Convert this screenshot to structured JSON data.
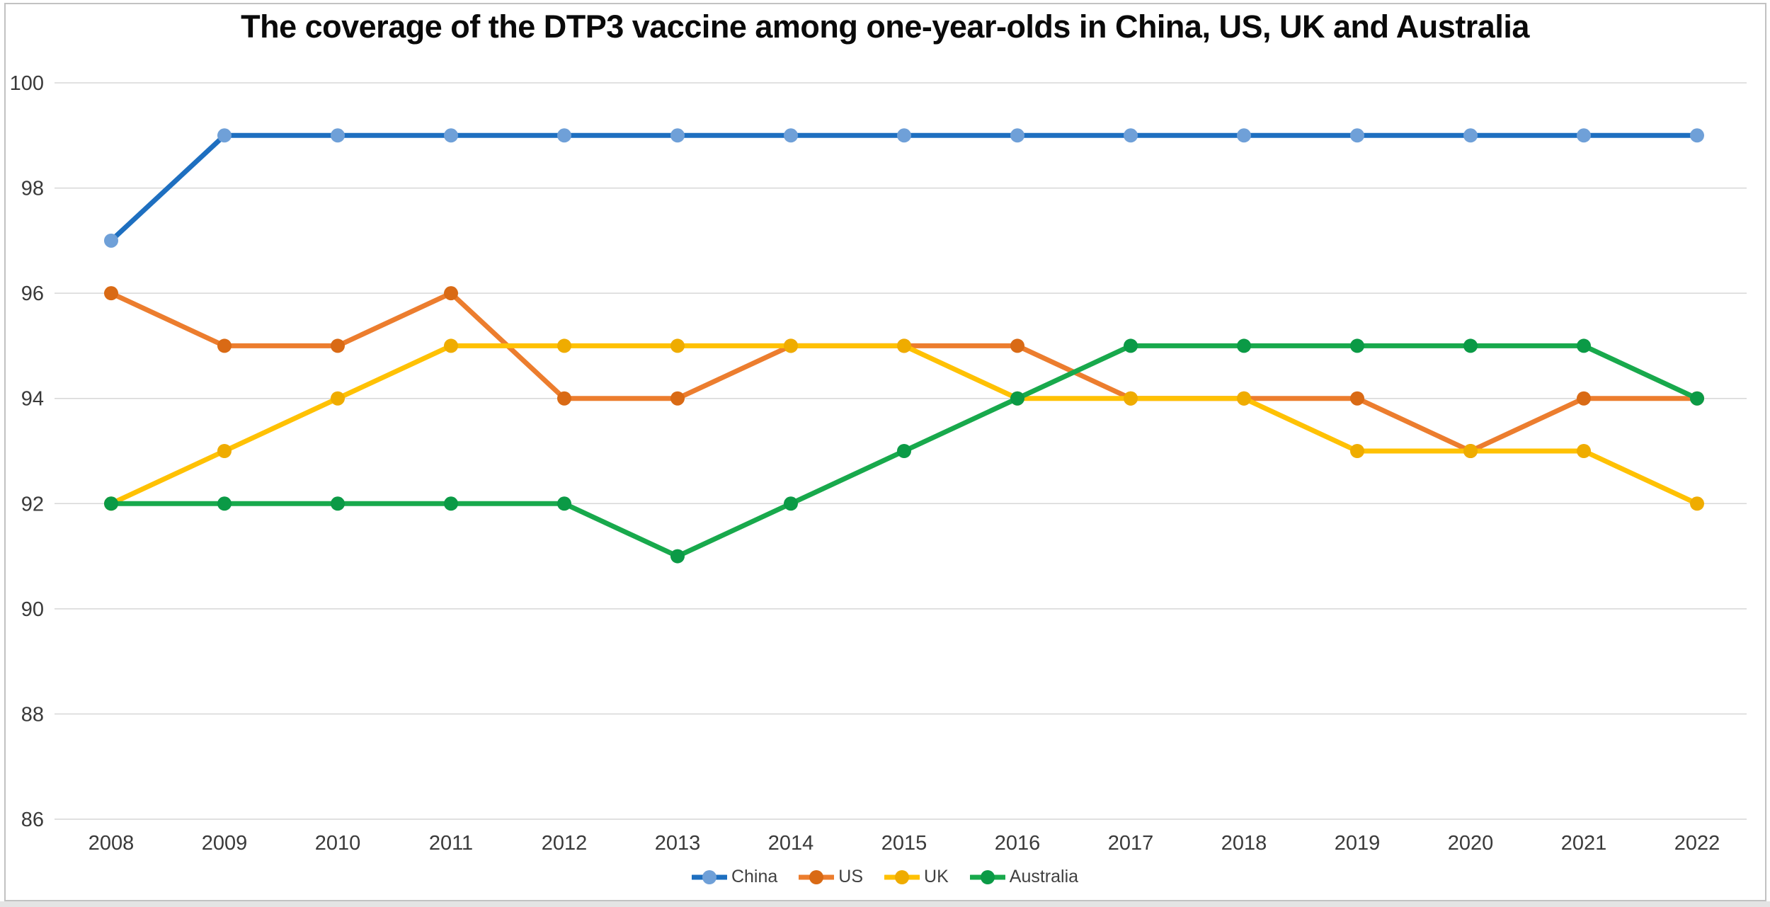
{
  "page": {
    "background": "#FFFFFF",
    "frame_border_color": "#C2C2C2",
    "bottom_strip_color": "#E4E4E4"
  },
  "chart_data": {
    "type": "line",
    "title": "The coverage of the DTP3 vaccine among one-year-olds in China, US, UK and Australia",
    "xlabel": "",
    "ylabel": "",
    "x": [
      2008,
      2009,
      2010,
      2011,
      2012,
      2013,
      2014,
      2015,
      2016,
      2017,
      2018,
      2019,
      2020,
      2021,
      2022
    ],
    "ylim": [
      86,
      100
    ],
    "ytick_step": 2,
    "yticks": [
      86,
      88,
      90,
      92,
      94,
      96,
      98,
      100
    ],
    "grid": true,
    "gridline_color": "#D7D7D7",
    "tick_label_color": "#3A3A3A",
    "legend_position": "bottom",
    "series": [
      {
        "name": "China",
        "color": "#1E6FC0",
        "marker_color": "#6FA0D8",
        "values": [
          97,
          99,
          99,
          99,
          99,
          99,
          99,
          99,
          99,
          99,
          99,
          99,
          99,
          99,
          99
        ]
      },
      {
        "name": "US",
        "color": "#EC7D2E",
        "marker_color": "#D96A15",
        "values": [
          96,
          95,
          95,
          96,
          94,
          94,
          95,
          95,
          95,
          94,
          94,
          94,
          93,
          94,
          94
        ]
      },
      {
        "name": "UK",
        "color": "#FFC103",
        "marker_color": "#EFAC00",
        "values": [
          92,
          93,
          94,
          95,
          95,
          95,
          95,
          95,
          94,
          94,
          94,
          93,
          93,
          93,
          92
        ]
      },
      {
        "name": "Australia",
        "color": "#18A94C",
        "marker_color": "#0B9A46",
        "values": [
          92,
          92,
          92,
          92,
          92,
          91,
          92,
          93,
          94,
          95,
          95,
          95,
          95,
          95,
          94
        ]
      }
    ]
  }
}
